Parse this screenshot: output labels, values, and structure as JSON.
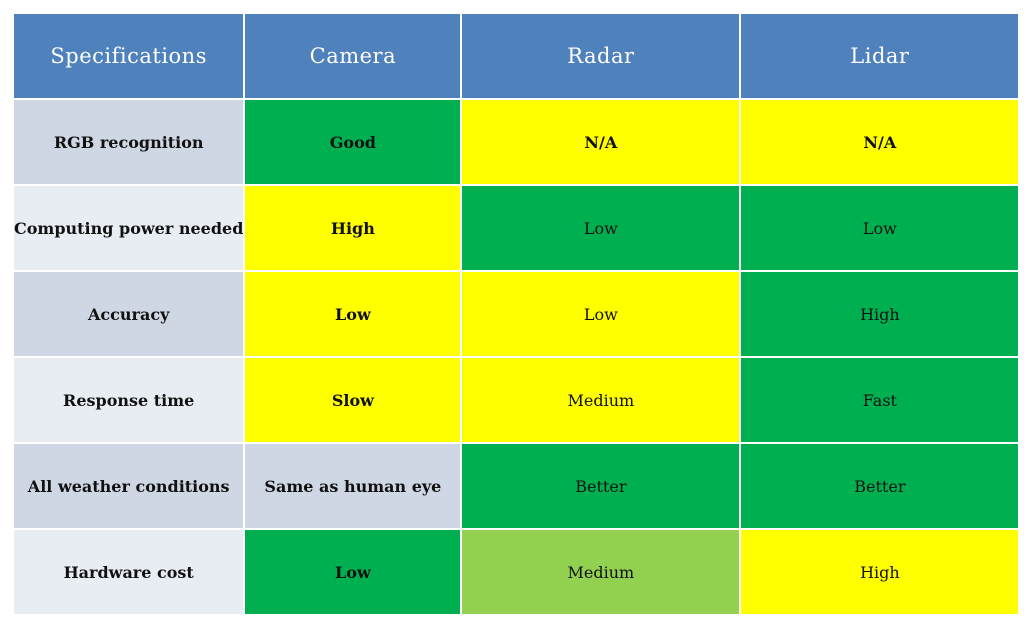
{
  "colors": {
    "header": "#4f81bd",
    "green": "#00b050",
    "yellow": "#ffff00",
    "light_green": "#92d050",
    "gray": "#cfd7e4",
    "label_dark": "#cfd7e4",
    "label_light": "#e8edf3"
  },
  "headers": [
    "Specifications",
    "Camera",
    "Radar",
    "Lidar"
  ],
  "rows": [
    {
      "label": "RGB recognition",
      "cells": [
        {
          "text": "Good",
          "color": "green",
          "weight": "bold"
        },
        {
          "text": "N/A",
          "color": "yellow",
          "weight": "bold"
        },
        {
          "text": "N/A",
          "color": "yellow",
          "weight": "bold"
        }
      ]
    },
    {
      "label": "Computing power needed",
      "cells": [
        {
          "text": "High",
          "color": "yellow",
          "weight": "bold"
        },
        {
          "text": "Low",
          "color": "green",
          "weight": "normal"
        },
        {
          "text": "Low",
          "color": "green",
          "weight": "normal"
        }
      ]
    },
    {
      "label": "Accuracy",
      "cells": [
        {
          "text": "Low",
          "color": "yellow",
          "weight": "bold"
        },
        {
          "text": "Low",
          "color": "yellow",
          "weight": "normal"
        },
        {
          "text": "High",
          "color": "green",
          "weight": "normal"
        }
      ]
    },
    {
      "label": "Response time",
      "cells": [
        {
          "text": "Slow",
          "color": "yellow",
          "weight": "bold"
        },
        {
          "text": "Medium",
          "color": "yellow",
          "weight": "normal"
        },
        {
          "text": "Fast",
          "color": "green",
          "weight": "normal"
        }
      ]
    },
    {
      "label": "All weather conditions",
      "cells": [
        {
          "text": "Same as human eye",
          "color": "gray",
          "weight": "bold"
        },
        {
          "text": "Better",
          "color": "green",
          "weight": "normal"
        },
        {
          "text": "Better",
          "color": "green",
          "weight": "normal"
        }
      ]
    },
    {
      "label": "Hardware cost",
      "cells": [
        {
          "text": "Low",
          "color": "green",
          "weight": "bold"
        },
        {
          "text": "Medium",
          "color": "light_green",
          "weight": "normal"
        },
        {
          "text": "High",
          "color": "yellow",
          "weight": "normal"
        }
      ]
    }
  ]
}
